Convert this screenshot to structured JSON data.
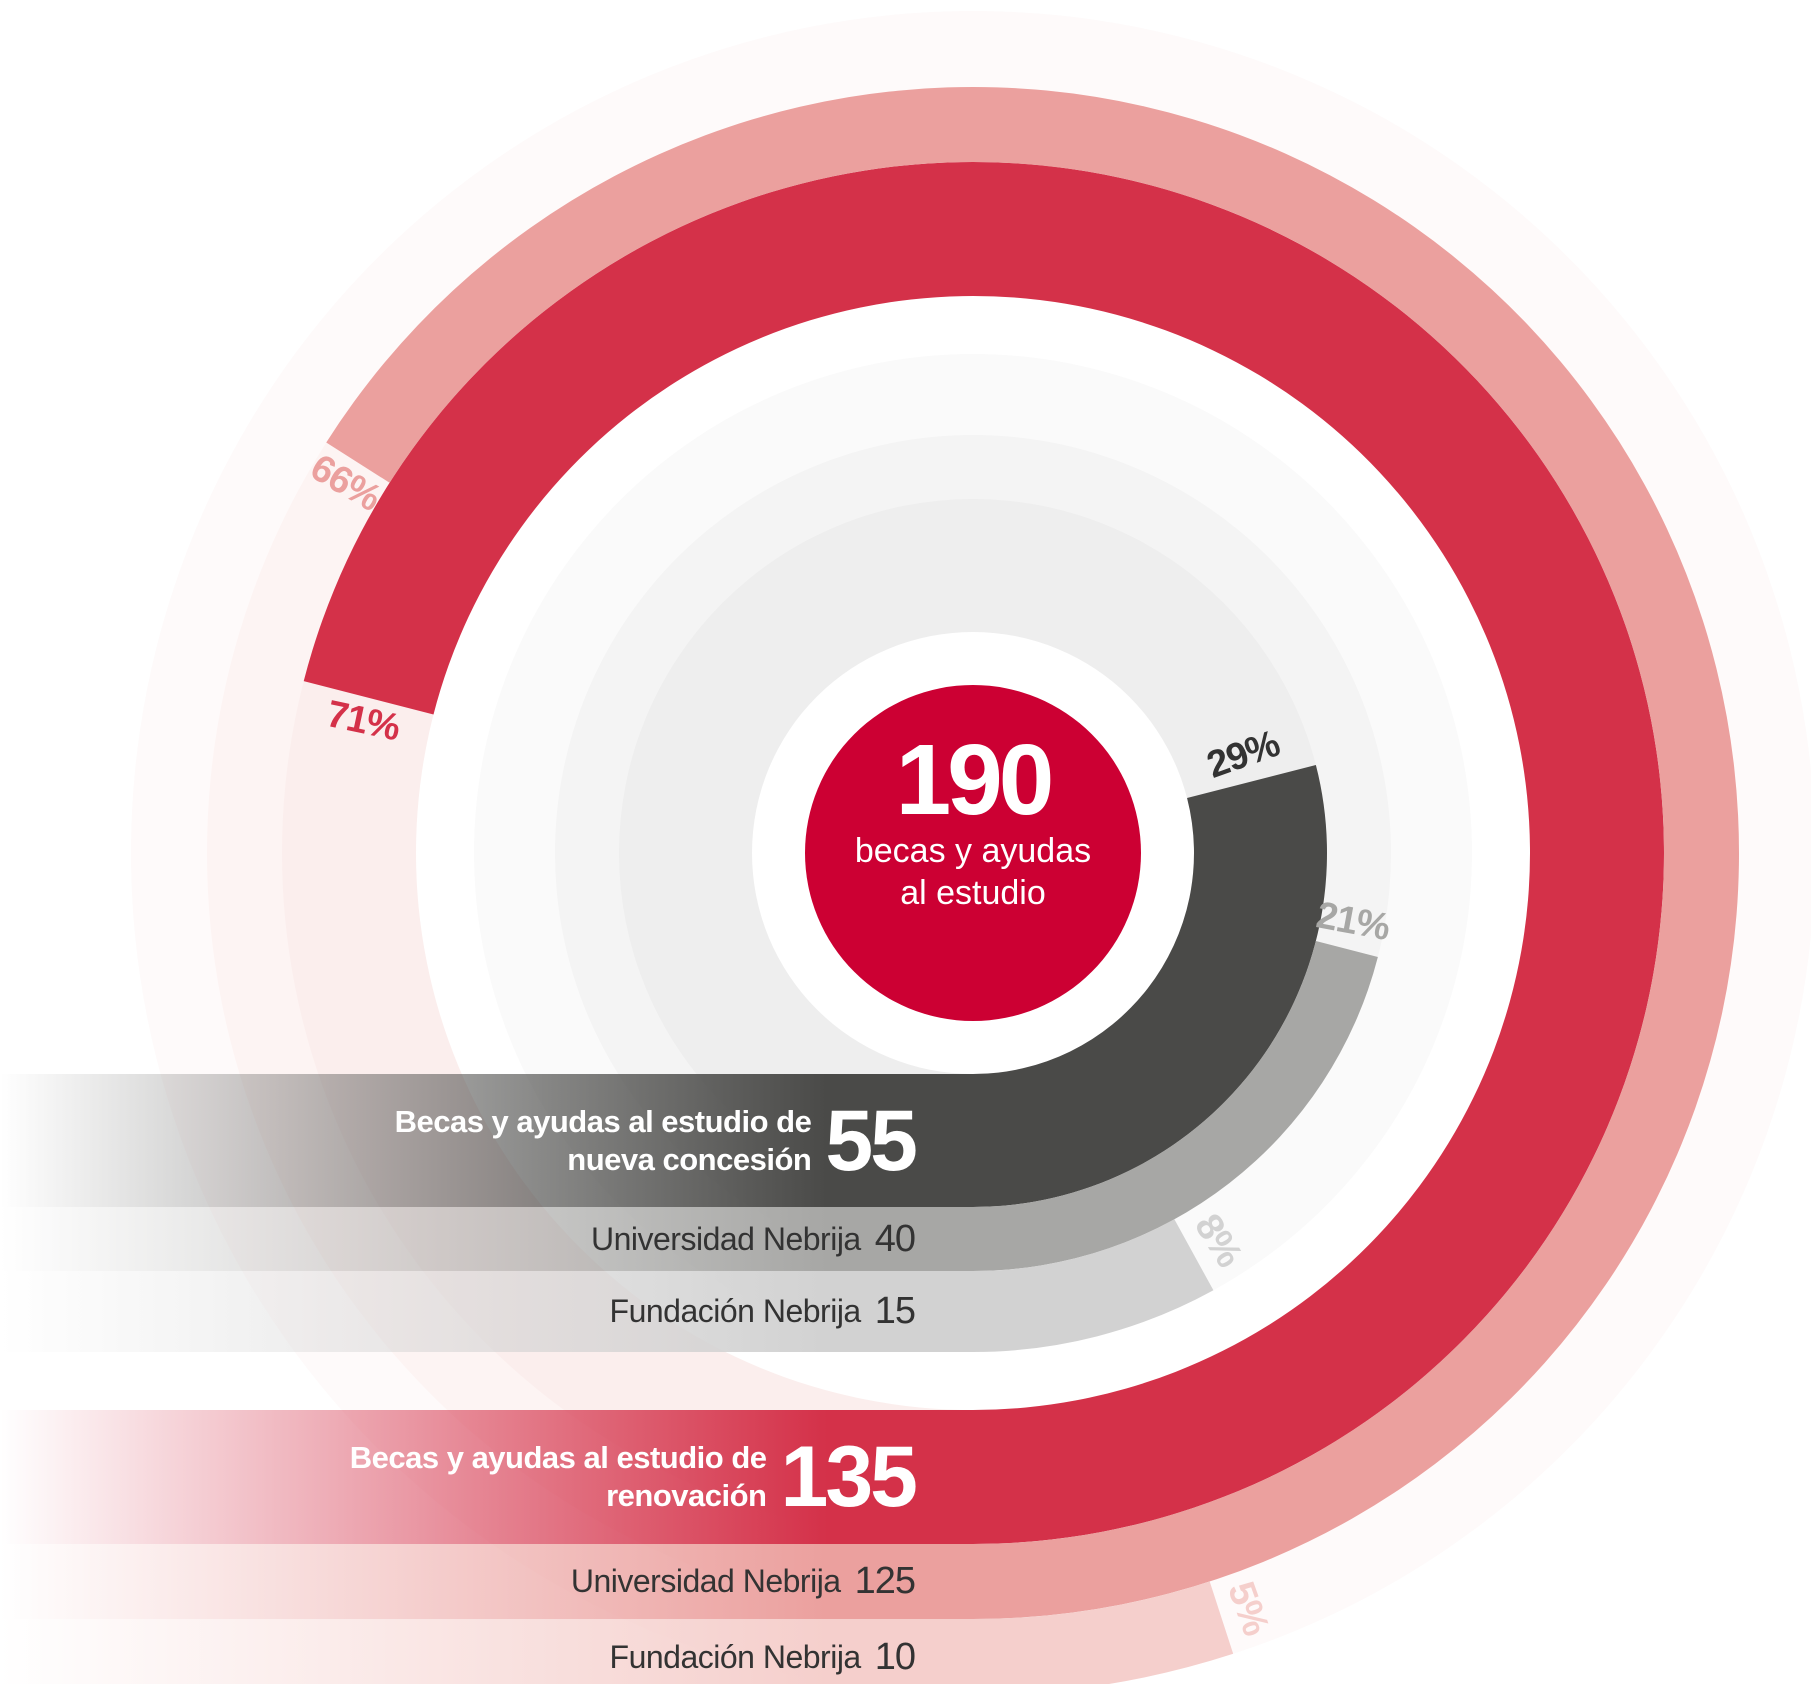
{
  "chart_data": {
    "type": "radial_bar",
    "total": 190,
    "total_label": "becas y ayudas al estudio",
    "groups": [
      {
        "name": "Becas y ayudas al estudio de nueva concesión",
        "value": 55,
        "percent": 29,
        "percent_label": "29%",
        "color": "#4a4a48",
        "items": [
          {
            "name": "Universidad Nebrija",
            "value": 40,
            "percent": 21,
            "percent_label": "21%",
            "color": "#a7a7a5"
          },
          {
            "name": "Fundación Nebrija",
            "value": 15,
            "percent": 8,
            "percent_label": "8%",
            "color": "#d2d2d2"
          }
        ]
      },
      {
        "name": "Becas y ayudas al estudio de renovación",
        "value": 135,
        "percent": 71,
        "percent_label": "71%",
        "color": "#d43149",
        "items": [
          {
            "name": "Universidad Nebrija",
            "value": 125,
            "percent": 66,
            "percent_label": "66%",
            "color": "#eba09e"
          },
          {
            "name": "Fundación Nebrija",
            "value": 10,
            "percent": 5,
            "percent_label": "5%",
            "color": "#f5cfcc"
          }
        ]
      }
    ]
  }
}
